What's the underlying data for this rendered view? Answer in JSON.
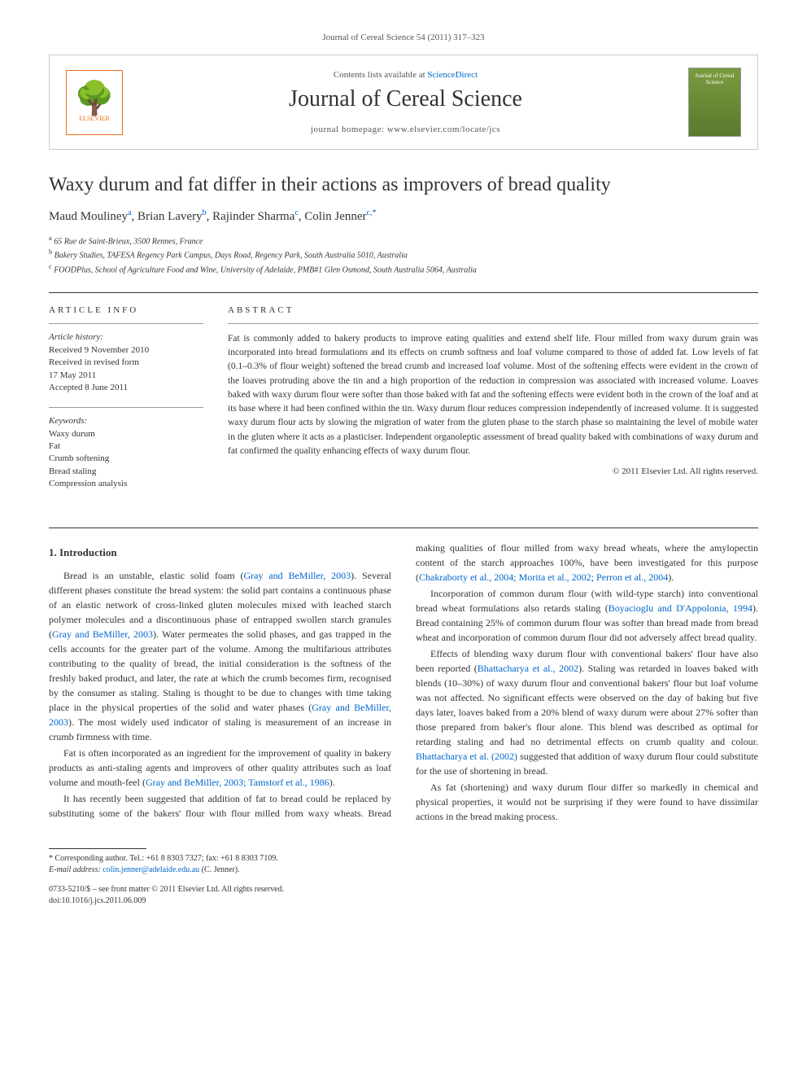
{
  "citation": "Journal of Cereal Science 54 (2011) 317–323",
  "header": {
    "contents_prefix": "Contents lists available at ",
    "contents_link": "ScienceDirect",
    "journal_name": "Journal of Cereal Science",
    "homepage_prefix": "journal homepage: ",
    "homepage_url": "www.elsevier.com/locate/jcs",
    "publisher": "ELSEVIER",
    "cover_text": "Journal of Cereal Science"
  },
  "article": {
    "title": "Waxy durum and fat differ in their actions as improvers of bread quality",
    "authors_html": "Maud Mouliney",
    "author_1": "Maud Mouliney",
    "author_1_aff": "a",
    "author_2": "Brian Lavery",
    "author_2_aff": "b",
    "author_3": "Rajinder Sharma",
    "author_3_aff": "c",
    "author_4": "Colin Jenner",
    "author_4_aff": "c,*",
    "affiliations": {
      "a": "65 Rue de Saint-Brieux, 3500 Rennes, France",
      "b": "Bakery Studies, TAFESA Regency Park Campus, Days Road, Regency Park, South Australia 5010, Australia",
      "c": "FOODPlus, School of Agriculture Food and Wine, University of Adelaide, PMB#1 Glen Osmond, South Australia 5064, Australia"
    }
  },
  "info": {
    "heading": "ARTICLE INFO",
    "history_label": "Article history:",
    "received": "Received 9 November 2010",
    "revised": "Received in revised form",
    "revised_date": "17 May 2011",
    "accepted": "Accepted 8 June 2011",
    "keywords_label": "Keywords:",
    "keywords": [
      "Waxy durum",
      "Fat",
      "Crumb softening",
      "Bread staling",
      "Compression analysis"
    ]
  },
  "abstract": {
    "heading": "ABSTRACT",
    "text": "Fat is commonly added to bakery products to improve eating qualities and extend shelf life. Flour milled from waxy durum grain was incorporated into bread formulations and its effects on crumb softness and loaf volume compared to those of added fat. Low levels of fat (0.1–0.3% of flour weight) softened the bread crumb and increased loaf volume. Most of the softening effects were evident in the crown of the loaves protruding above the tin and a high proportion of the reduction in compression was associated with increased volume. Loaves baked with waxy durum flour were softer than those baked with fat and the softening effects were evident both in the crown of the loaf and at its base where it had been confined within the tin. Waxy durum flour reduces compression independently of increased volume. It is suggested waxy durum flour acts by slowing the migration of water from the gluten phase to the starch phase so maintaining the level of mobile water in the gluten where it acts as a plasticiser. Independent organoleptic assessment of bread quality baked with combinations of waxy durum and fat confirmed the quality enhancing effects of waxy durum flour.",
    "copyright": "© 2011 Elsevier Ltd. All rights reserved."
  },
  "body": {
    "section1_heading": "1. Introduction",
    "p1a": "Bread is an unstable, elastic solid foam (",
    "p1_ref1": "Gray and BeMiller, 2003",
    "p1b": "). Several different phases constitute the bread system: the solid part contains a continuous phase of an elastic network of cross-linked gluten molecules mixed with leached starch polymer molecules and a discontinuous phase of entrapped swollen starch granules (",
    "p1_ref2": "Gray and BeMiller, 2003",
    "p1c": "). Water permeates the solid phases, and gas trapped in the cells accounts for the greater part of the volume. Among the multifarious attributes contributing to the quality of bread, the initial consideration is the softness of the freshly baked product, and later, the rate at which the crumb becomes firm, recognised by the consumer as staling. Staling is thought to be due to changes with time taking place in the physical properties of the solid and water phases (",
    "p1_ref3": "Gray and BeMiller, 2003",
    "p1d": "). The most widely used indicator of staling is measurement of an increase in crumb firmness with time.",
    "p2a": "Fat is often incorporated as an ingredient for the improvement of quality in bakery products as anti-staling agents and improvers of other quality attributes such as loaf volume and mouth-feel (",
    "p2_ref1": "Gray and BeMiller, 2003; Tamstorf et al., 1986",
    "p2b": ").",
    "p3a": "It has recently been suggested that addition of fat to bread could be replaced by substituting some of the bakers' flour with flour milled from waxy wheats. Bread making qualities of flour milled from waxy bread wheats, where the amylopectin content of the starch approaches 100%, have been investigated for this purpose (",
    "p3_ref1": "Chakraborty et al., 2004; Morita et al., 2002; Perron et al., 2004",
    "p3b": ").",
    "p4a": "Incorporation of common durum flour (with wild-type starch) into conventional bread wheat formulations also retards staling (",
    "p4_ref1": "Boyacioglu and D'Appolonia, 1994",
    "p4b": "). Bread containing 25% of common durum flour was softer than bread made from bread wheat and incorporation of common durum flour did not adversely affect bread quality.",
    "p5a": "Effects of blending waxy durum flour with conventional bakers' flour have also been reported (",
    "p5_ref1": "Bhattacharya et al., 2002",
    "p5b": "). Staling was retarded in loaves baked with blends (10–30%) of waxy durum flour and conventional bakers' flour but loaf volume was not affected. No significant effects were observed on the day of baking but five days later, loaves baked from a 20% blend of waxy durum were about 27% softer than those prepared from baker's flour alone. This blend was described as optimal for retarding staling and had no detrimental effects on crumb quality and colour. ",
    "p5_ref2": "Bhattacharya et al. (2002)",
    "p5c": " suggested that addition of waxy durum flour could substitute for the use of shortening in bread.",
    "p6": "As fat (shortening) and waxy durum flour differ so markedly in chemical and physical properties, it would not be surprising if they were found to have dissimilar actions in the bread making process."
  },
  "footer": {
    "corresp_label": "* Corresponding author. Tel.: +61 8 8303 7327; fax: +61 8 8303 7109.",
    "email_label": "E-mail address:",
    "email": "colin.jenner@adelaide.edu.au",
    "email_person": "(C. Jenner).",
    "issn_line": "0733-5210/$ – see front matter © 2011 Elsevier Ltd. All rights reserved.",
    "doi": "doi:10.1016/j.jcs.2011.06.009"
  }
}
